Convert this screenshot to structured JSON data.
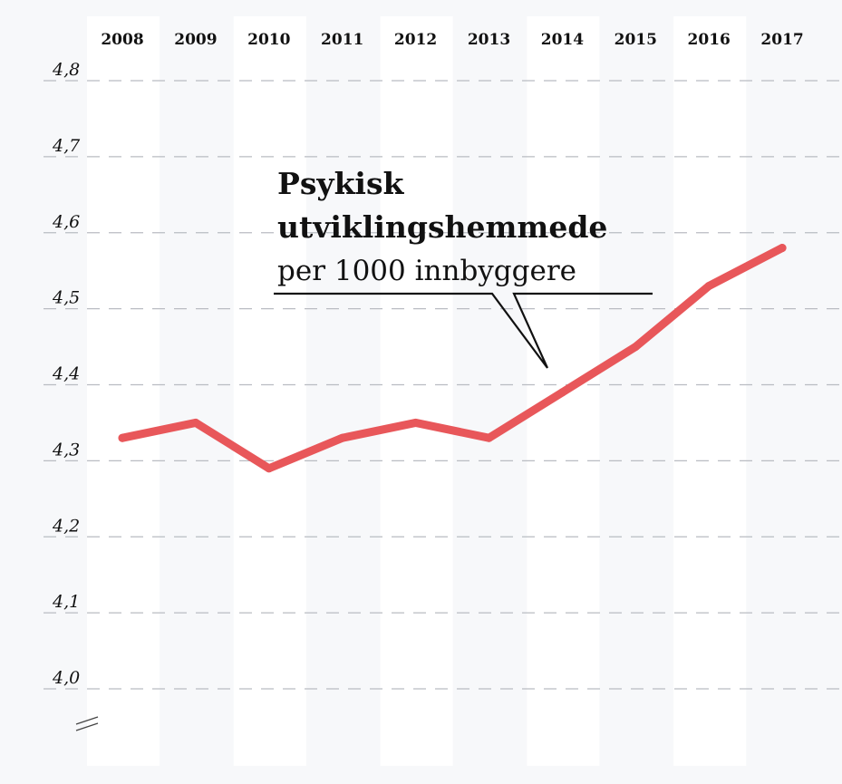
{
  "chart_data": {
    "type": "line",
    "x": [
      "2008",
      "2009",
      "2010",
      "2011",
      "2012",
      "2013",
      "2014",
      "2015",
      "2016",
      "2017"
    ],
    "series": [
      {
        "values": [
          4.33,
          4.35,
          4.29,
          4.33,
          4.35,
          4.33,
          4.39,
          4.45,
          4.53,
          4.58
        ]
      }
    ],
    "y_ticks": [
      "4,0",
      "4,1",
      "4,2",
      "4,3",
      "4,4",
      "4,5",
      "4,6",
      "4,7",
      "4,8"
    ],
    "ylim": [
      4.0,
      4.8
    ],
    "axis_break": true,
    "grid": true,
    "annotation": {
      "title": "Psykisk utviklingshemmede",
      "title_line1": "Psykisk",
      "title_line2": "utviklingshemmede",
      "subtitle": "per 1000 innbyggere",
      "points_to": "2014"
    },
    "colors": {
      "line": "#e8575a",
      "background": "#f7f8fa",
      "band": "#ffffff"
    }
  }
}
